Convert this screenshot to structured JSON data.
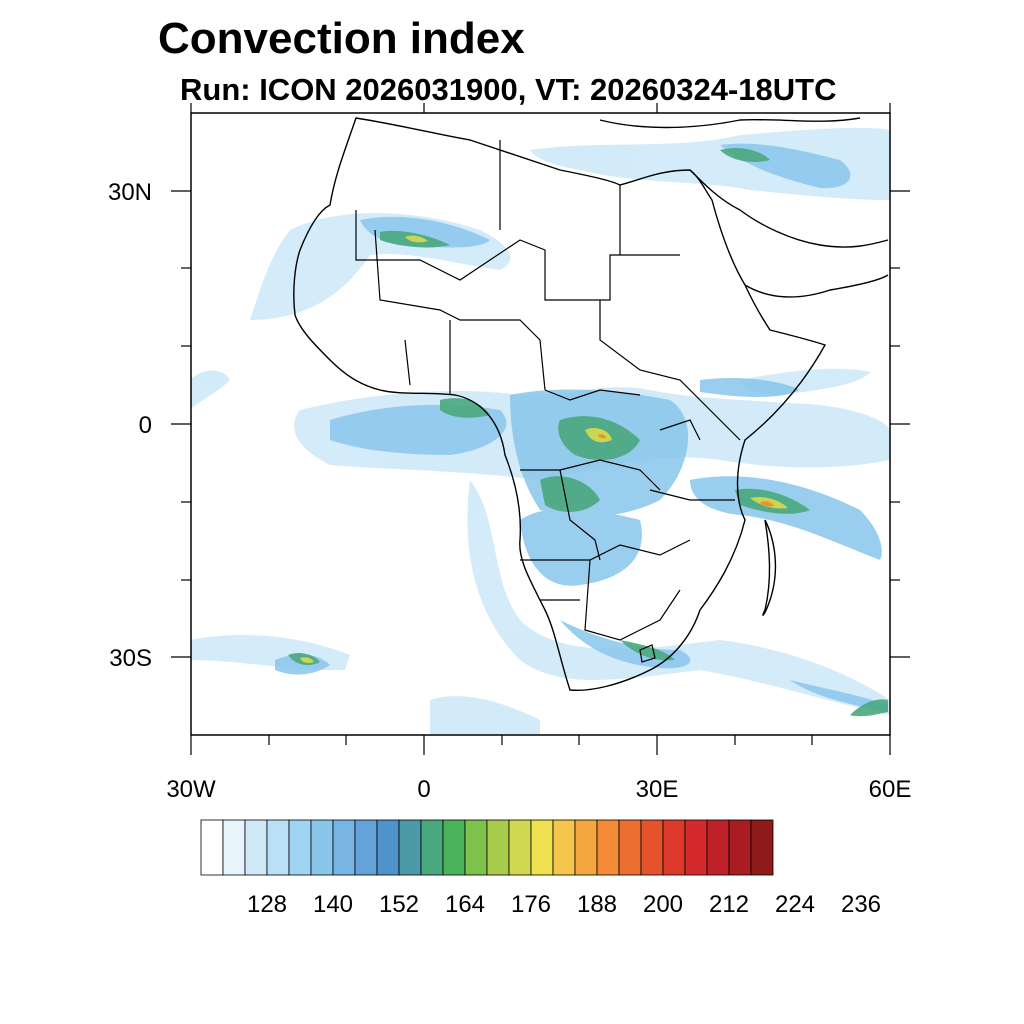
{
  "title": "Convection index",
  "subtitle": "Run: ICON 2026031900,  VT: 20260324-18UTC",
  "map": {
    "region": "Africa",
    "lon_range": [
      -30,
      60
    ],
    "lat_range": [
      -40,
      40
    ],
    "lat_labels": [
      "30N",
      "0",
      "30S"
    ],
    "lon_labels": [
      "30W",
      "0",
      "30E",
      "60E"
    ]
  },
  "colorbar": {
    "colors": [
      "#ffffff",
      "#e8f4fc",
      "#cfe9f8",
      "#b9e0f6",
      "#9fd5f3",
      "#88c6ec",
      "#78b5e4",
      "#64a3da",
      "#4f93cb",
      "#4a9aa8",
      "#4aa87e",
      "#4bb35a",
      "#7ec24c",
      "#a8cc4c",
      "#cfd84e",
      "#efe150",
      "#f6c64c",
      "#f6a640",
      "#f38b38",
      "#ec6e30",
      "#e4532c",
      "#de3a2c",
      "#d42a2c",
      "#bf2128",
      "#a81c22",
      "#8e1a1c"
    ],
    "tick_labels": [
      "128",
      "140",
      "152",
      "164",
      "176",
      "188",
      "200",
      "212",
      "224",
      "236"
    ]
  }
}
